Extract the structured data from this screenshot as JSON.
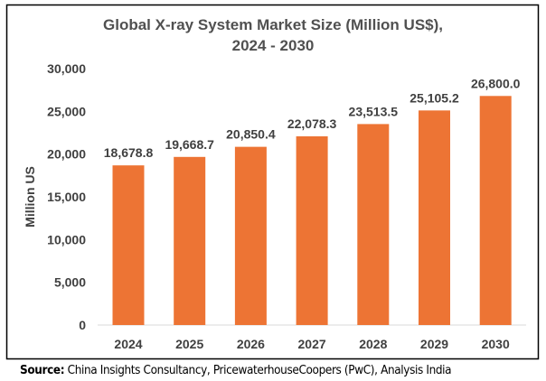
{
  "chart_data": {
    "type": "bar",
    "title_line1": "Global X-ray System Market Size (Million US$),",
    "title_line2": "2024 - 2030",
    "ylabel": "Million US",
    "xlabel": "",
    "ylim": [
      0,
      30000
    ],
    "yticks": [
      "0",
      "5,000",
      "10,000",
      "15,000",
      "20,000",
      "25,000",
      "30,000"
    ],
    "categories": [
      "2024",
      "2025",
      "2026",
      "2027",
      "2028",
      "2029",
      "2030"
    ],
    "values": [
      18678.8,
      19668.7,
      20850.4,
      22078.3,
      23513.5,
      25105.2,
      26800.0
    ],
    "data_labels": [
      "18,678.8",
      "19,668.7",
      "20,850.4",
      "22,078.3",
      "23,513.5",
      "25,105.2",
      "26,800.0"
    ],
    "bar_color": "#ED7434",
    "grid": false,
    "legend": "none"
  },
  "source": {
    "label": "Source:",
    "text": " China Insights Consultancy, PricewaterhouseCoopers (PwC), Analysis India"
  }
}
